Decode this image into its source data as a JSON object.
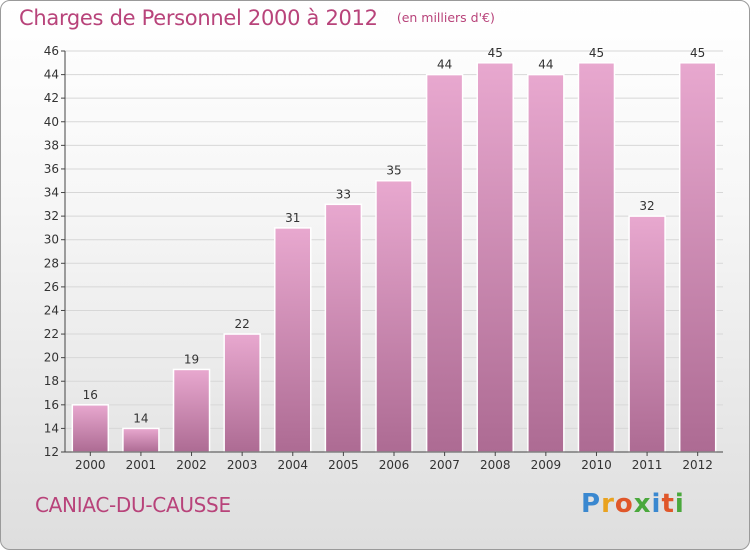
{
  "header": {
    "title": "Charges de Personnel 2000 à 2012",
    "subtitle": "(en milliers d'€)"
  },
  "footer": {
    "commune": "CANIAC-DU-CAUSSE",
    "logo_letters": [
      "P",
      "r",
      "o",
      "x",
      "i",
      "t",
      "i"
    ],
    "logo_colors": [
      "#3a88d0",
      "#e9a21f",
      "#e0572a",
      "#4aa83c",
      "#3a88d0",
      "#e0572a",
      "#4aa83c"
    ]
  },
  "colors": {
    "accent": "#b8437a",
    "bar_top": "#e8a8cf",
    "bar_bottom": "#ad6b93",
    "axis": "#444444",
    "grid": "#d7d7d7"
  },
  "chart_data": {
    "type": "bar",
    "title": "Charges de Personnel 2000 à 2012",
    "subtitle": "(en milliers d'€)",
    "categories": [
      "2000",
      "2001",
      "2002",
      "2003",
      "2004",
      "2005",
      "2006",
      "2007",
      "2008",
      "2009",
      "2010",
      "2011",
      "2012"
    ],
    "values": [
      16,
      14,
      19,
      22,
      31,
      33,
      35,
      44,
      45,
      44,
      45,
      32,
      45
    ],
    "ylim": [
      12,
      46
    ],
    "yticks": [
      12,
      14,
      16,
      18,
      20,
      22,
      24,
      26,
      28,
      30,
      32,
      34,
      36,
      38,
      40,
      42,
      44,
      46
    ],
    "xlabel": "",
    "ylabel": "",
    "grid": true,
    "legend": "none"
  }
}
